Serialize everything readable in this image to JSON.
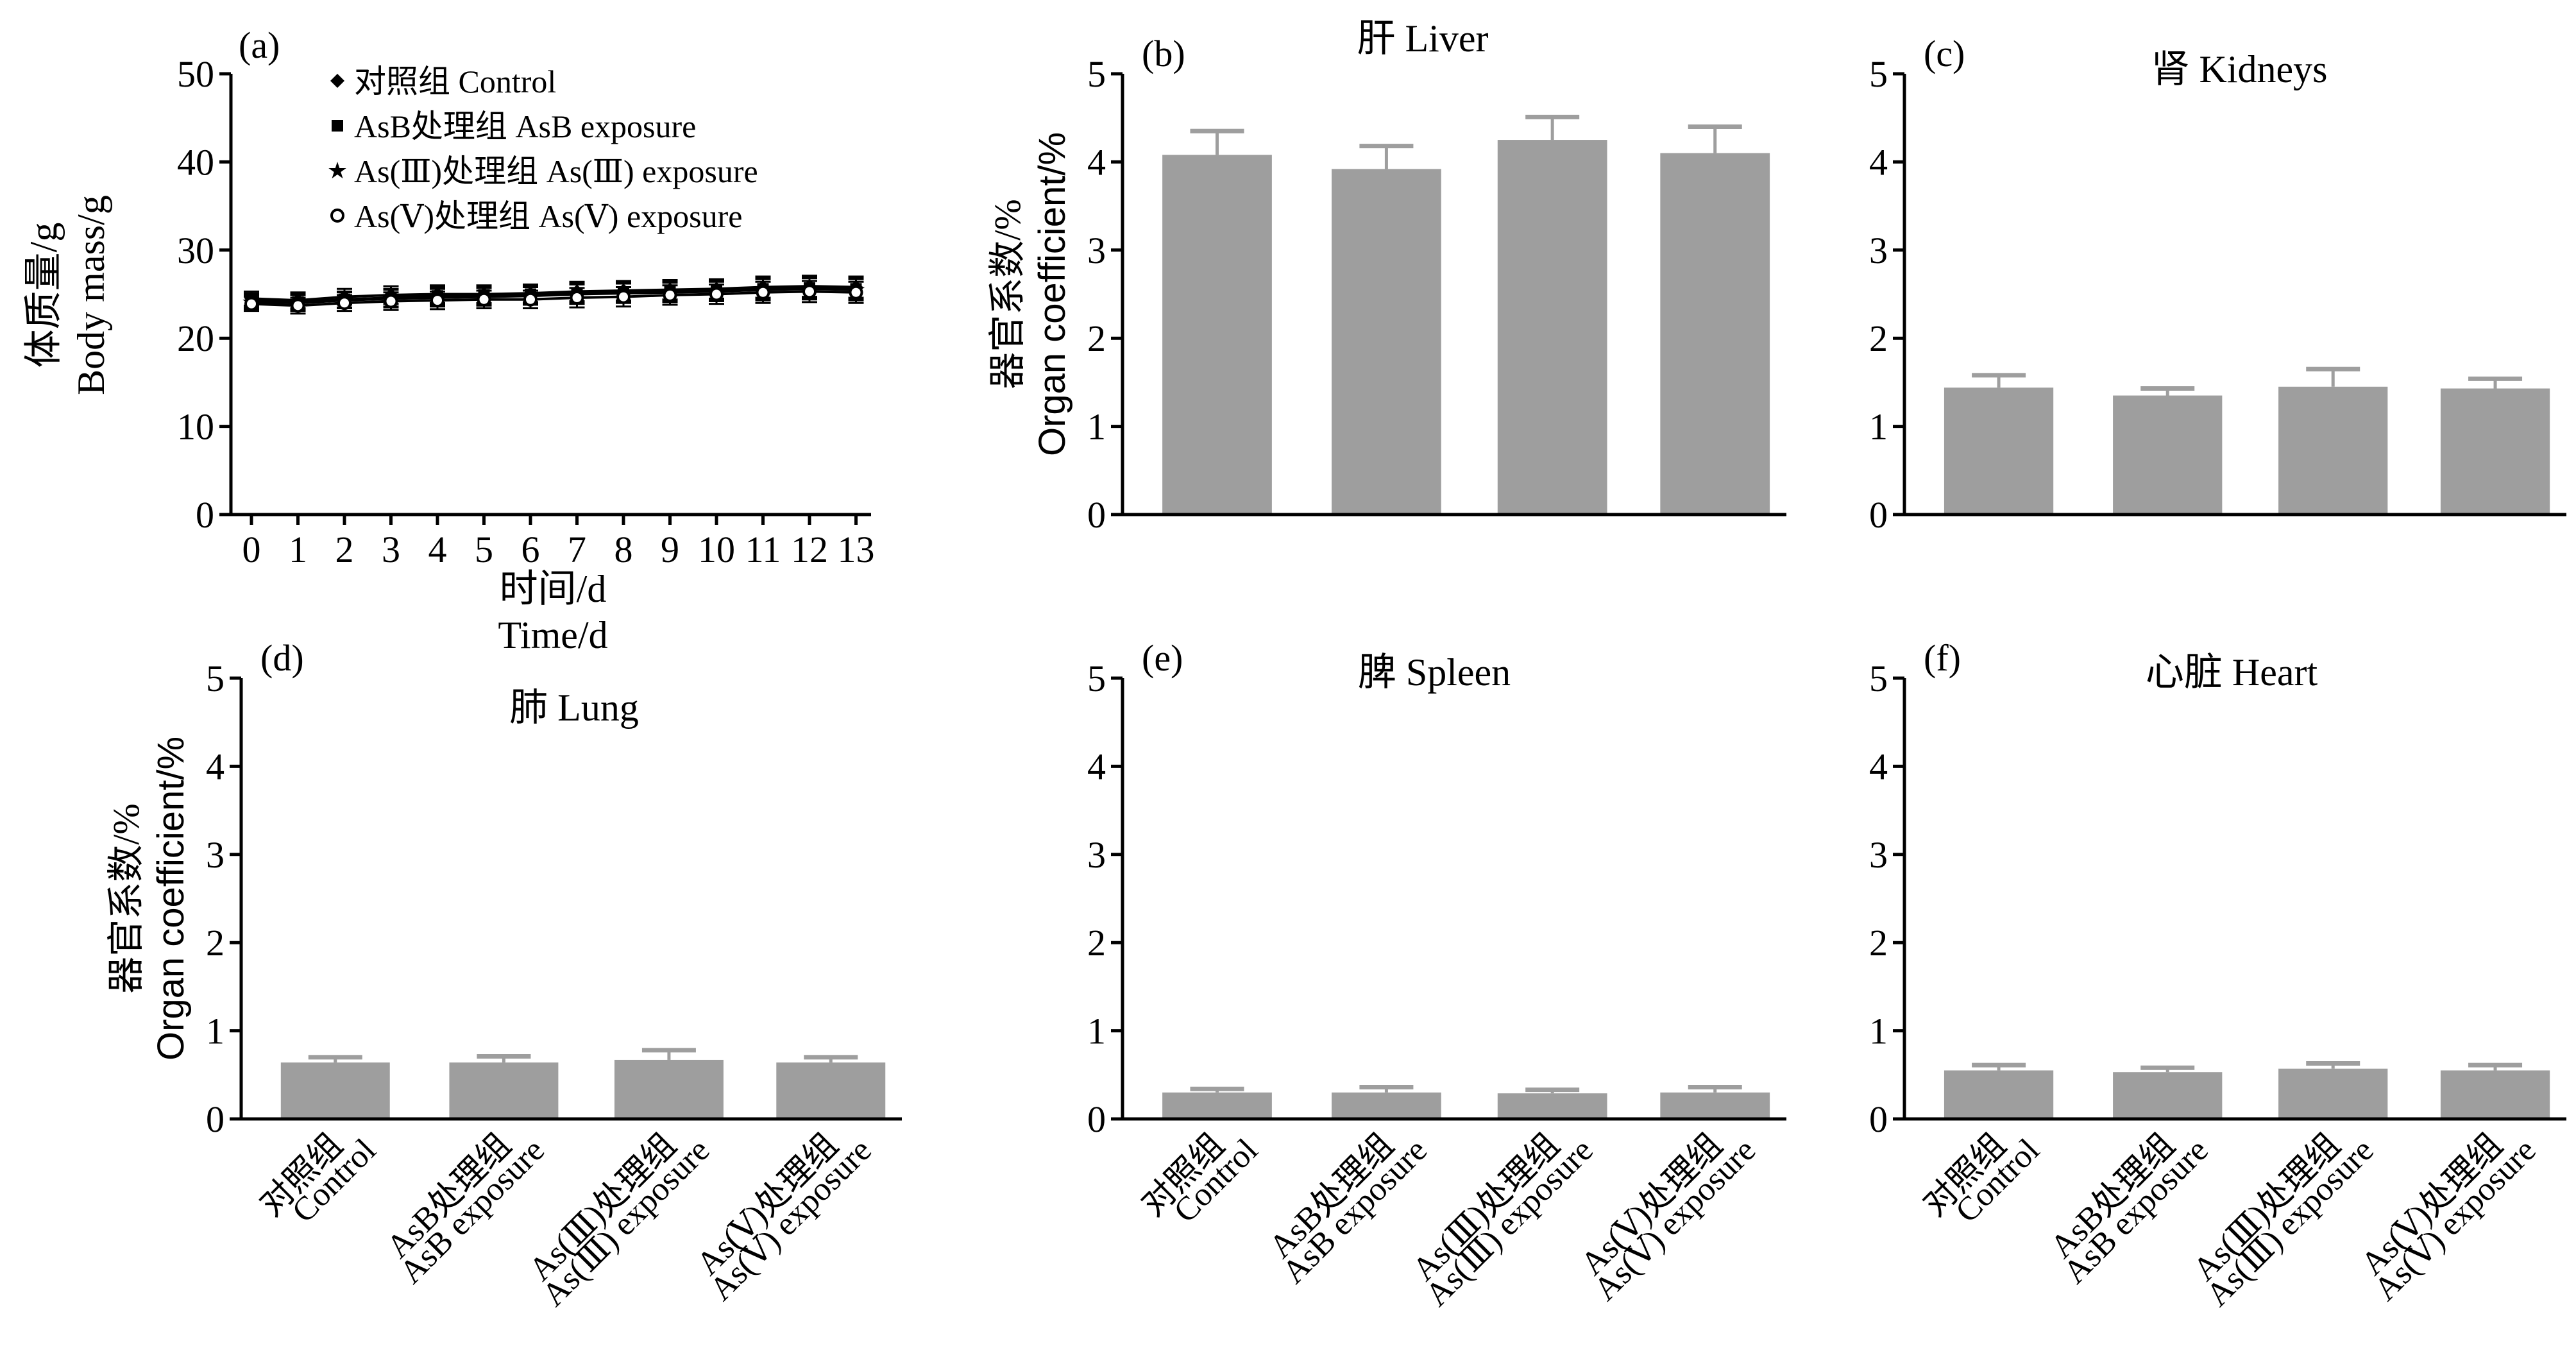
{
  "chart_data": [
    {
      "type": "line",
      "panel_label": "(a)",
      "xlabel": [
        "时间/d",
        "Time/d"
      ],
      "ylabel": [
        "体质量/g",
        "Body mass/g"
      ],
      "x": [
        0,
        1,
        2,
        3,
        4,
        5,
        6,
        7,
        8,
        9,
        10,
        11,
        12,
        13
      ],
      "xticks": [
        "0",
        "1",
        "2",
        "3",
        "4",
        "5",
        "6",
        "7",
        "8",
        "9",
        "10",
        "11",
        "12",
        "13"
      ],
      "ylim": [
        0,
        50
      ],
      "yticks": [
        "0",
        "10",
        "20",
        "30",
        "40",
        "50"
      ],
      "series": [
        {
          "name": "对照组 Control",
          "marker": "filled-diamond",
          "values": [
            24.5,
            24.3,
            24.7,
            24.9,
            25.0,
            25.0,
            25.1,
            25.3,
            25.4,
            25.5,
            25.6,
            25.8,
            25.9,
            25.8
          ],
          "errors": [
            0.8,
            0.9,
            0.9,
            1.0,
            1.0,
            1.0,
            1.0,
            1.1,
            1.1,
            1.1,
            1.1,
            1.2,
            1.2,
            1.2
          ]
        },
        {
          "name": "AsB处理组 AsB exposure",
          "marker": "filled-square",
          "values": [
            24.3,
            24.1,
            24.4,
            24.6,
            24.8,
            24.9,
            25.0,
            25.1,
            25.2,
            25.3,
            25.4,
            25.6,
            25.7,
            25.6
          ],
          "errors": [
            0.8,
            0.9,
            0.9,
            1.0,
            1.0,
            1.0,
            1.0,
            1.1,
            1.1,
            1.1,
            1.1,
            1.2,
            1.2,
            1.2
          ]
        },
        {
          "name": "As(Ⅲ)处理组 As(Ⅲ) exposure",
          "marker": "star",
          "values": [
            24.1,
            24.0,
            24.3,
            24.5,
            24.6,
            24.7,
            24.8,
            25.0,
            25.1,
            25.2,
            25.3,
            25.5,
            25.6,
            25.5
          ],
          "errors": [
            0.8,
            0.9,
            0.9,
            1.0,
            1.0,
            1.0,
            1.0,
            1.1,
            1.1,
            1.1,
            1.1,
            1.2,
            1.2,
            1.2
          ]
        },
        {
          "name": "As(Ⅴ)处理组 As(Ⅴ) exposure",
          "marker": "open-circle",
          "values": [
            23.9,
            23.7,
            24.0,
            24.2,
            24.3,
            24.4,
            24.4,
            24.6,
            24.7,
            24.9,
            25.0,
            25.2,
            25.3,
            25.2
          ],
          "errors": [
            0.8,
            0.9,
            0.9,
            1.0,
            1.0,
            1.0,
            1.0,
            1.1,
            1.1,
            1.1,
            1.1,
            1.2,
            1.2,
            1.2
          ]
        }
      ]
    },
    {
      "type": "bar",
      "panel_label": "(b)",
      "title": "肝 Liver",
      "ylabel": [
        "器官系数/%",
        "Organ coefficient/%"
      ],
      "categories": [
        [
          "对照组",
          "Control"
        ],
        [
          "AsB处理组",
          "AsB exposure"
        ],
        [
          "As(Ⅲ)处理组",
          "As(Ⅲ) exposure"
        ],
        [
          "As(Ⅴ)处理组",
          "As(Ⅴ) exposure"
        ]
      ],
      "values": [
        4.08,
        3.92,
        4.25,
        4.1
      ],
      "errors": [
        0.27,
        0.26,
        0.26,
        0.3
      ],
      "ylim": [
        0,
        5
      ],
      "yticks": [
        "0",
        "1",
        "2",
        "3",
        "4",
        "5"
      ],
      "show_category_labels": false
    },
    {
      "type": "bar",
      "panel_label": "(c)",
      "title": "肾 Kidneys",
      "categories": [
        [
          "对照组",
          "Control"
        ],
        [
          "AsB处理组",
          "AsB exposure"
        ],
        [
          "As(Ⅲ)处理组",
          "As(Ⅲ) exposure"
        ],
        [
          "As(Ⅴ)处理组",
          "As(Ⅴ) exposure"
        ]
      ],
      "values": [
        1.44,
        1.35,
        1.45,
        1.43
      ],
      "errors": [
        0.14,
        0.08,
        0.2,
        0.11
      ],
      "ylim": [
        0,
        5
      ],
      "yticks": [
        "0",
        "1",
        "2",
        "3",
        "4",
        "5"
      ],
      "show_category_labels": false
    },
    {
      "type": "bar",
      "panel_label": "(d)",
      "title": "肺 Lung",
      "ylabel": [
        "器官系数/%",
        "Organ coefficient/%"
      ],
      "categories": [
        [
          "对照组",
          "Control"
        ],
        [
          "AsB处理组",
          "AsB exposure"
        ],
        [
          "As(Ⅲ)处理组",
          "As(Ⅲ) exposure"
        ],
        [
          "As(Ⅴ)处理组",
          "As(Ⅴ) exposure"
        ]
      ],
      "values": [
        0.64,
        0.64,
        0.67,
        0.64
      ],
      "errors": [
        0.06,
        0.07,
        0.11,
        0.06
      ],
      "ylim": [
        0,
        5
      ],
      "yticks": [
        "0",
        "1",
        "2",
        "3",
        "4",
        "5"
      ],
      "show_category_labels": true
    },
    {
      "type": "bar",
      "panel_label": "(e)",
      "title": "脾 Spleen",
      "categories": [
        [
          "对照组",
          "Control"
        ],
        [
          "AsB处理组",
          "AsB exposure"
        ],
        [
          "As(Ⅲ)处理组",
          "As(Ⅲ) exposure"
        ],
        [
          "As(Ⅴ)处理组",
          "As(Ⅴ) exposure"
        ]
      ],
      "values": [
        0.3,
        0.3,
        0.29,
        0.3
      ],
      "errors": [
        0.04,
        0.06,
        0.04,
        0.06
      ],
      "ylim": [
        0,
        5
      ],
      "yticks": [
        "0",
        "1",
        "2",
        "3",
        "4",
        "5"
      ],
      "show_category_labels": true
    },
    {
      "type": "bar",
      "panel_label": "(f)",
      "title": "心脏 Heart",
      "categories": [
        [
          "对照组",
          "Control"
        ],
        [
          "AsB处理组",
          "AsB exposure"
        ],
        [
          "As(Ⅲ)处理组",
          "As(Ⅲ) exposure"
        ],
        [
          "As(Ⅴ)处理组",
          "As(Ⅴ) exposure"
        ]
      ],
      "values": [
        0.55,
        0.53,
        0.57,
        0.55
      ],
      "errors": [
        0.06,
        0.05,
        0.06,
        0.06
      ],
      "ylim": [
        0,
        5
      ],
      "yticks": [
        "0",
        "1",
        "2",
        "3",
        "4",
        "5"
      ],
      "show_category_labels": true
    }
  ],
  "colors": {
    "bar": "#9e9e9e",
    "axis": "#000000"
  }
}
